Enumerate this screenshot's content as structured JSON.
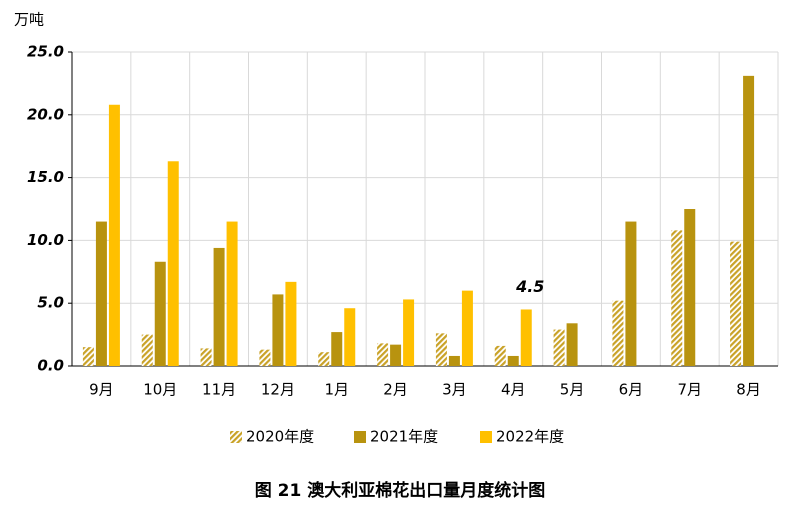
{
  "chart_data": {
    "type": "bar",
    "title": "图 21   澳大利亚棉花出口量月度统计图",
    "y_label": "万吨",
    "categories": [
      "9月",
      "10月",
      "11月",
      "12月",
      "1月",
      "2月",
      "3月",
      "4月",
      "5月",
      "6月",
      "7月",
      "8月"
    ],
    "series": [
      {
        "name": "2020年度",
        "color": "#c9a227",
        "pattern": "hatch",
        "values": [
          1.5,
          2.5,
          1.4,
          1.3,
          1.1,
          1.8,
          2.6,
          1.6,
          2.9,
          5.2,
          10.8,
          9.9
        ]
      },
      {
        "name": "2021年度",
        "color": "#b8930f",
        "values": [
          11.5,
          8.3,
          9.4,
          5.7,
          2.7,
          1.7,
          0.8,
          0.8,
          3.4,
          11.5,
          12.5,
          23.1
        ]
      },
      {
        "name": "2022年度",
        "color": "#ffc000",
        "values": [
          20.8,
          16.3,
          11.5,
          6.7,
          4.6,
          5.3,
          6.0,
          4.5,
          null,
          null,
          null,
          null
        ],
        "value_labels": [
          null,
          null,
          null,
          null,
          null,
          null,
          null,
          "4.5",
          null,
          null,
          null,
          null
        ]
      }
    ],
    "ylim": [
      0,
      25
    ],
    "yticks": [
      {
        "value": 0,
        "label": "0.0"
      },
      {
        "value": 5,
        "label": "5.0"
      },
      {
        "value": 10,
        "label": "10.0"
      },
      {
        "value": 15,
        "label": "15.0"
      },
      {
        "value": 20,
        "label": "20.0"
      },
      {
        "value": 25,
        "label": "25.0"
      }
    ],
    "grid": true,
    "legend": "bottom"
  }
}
